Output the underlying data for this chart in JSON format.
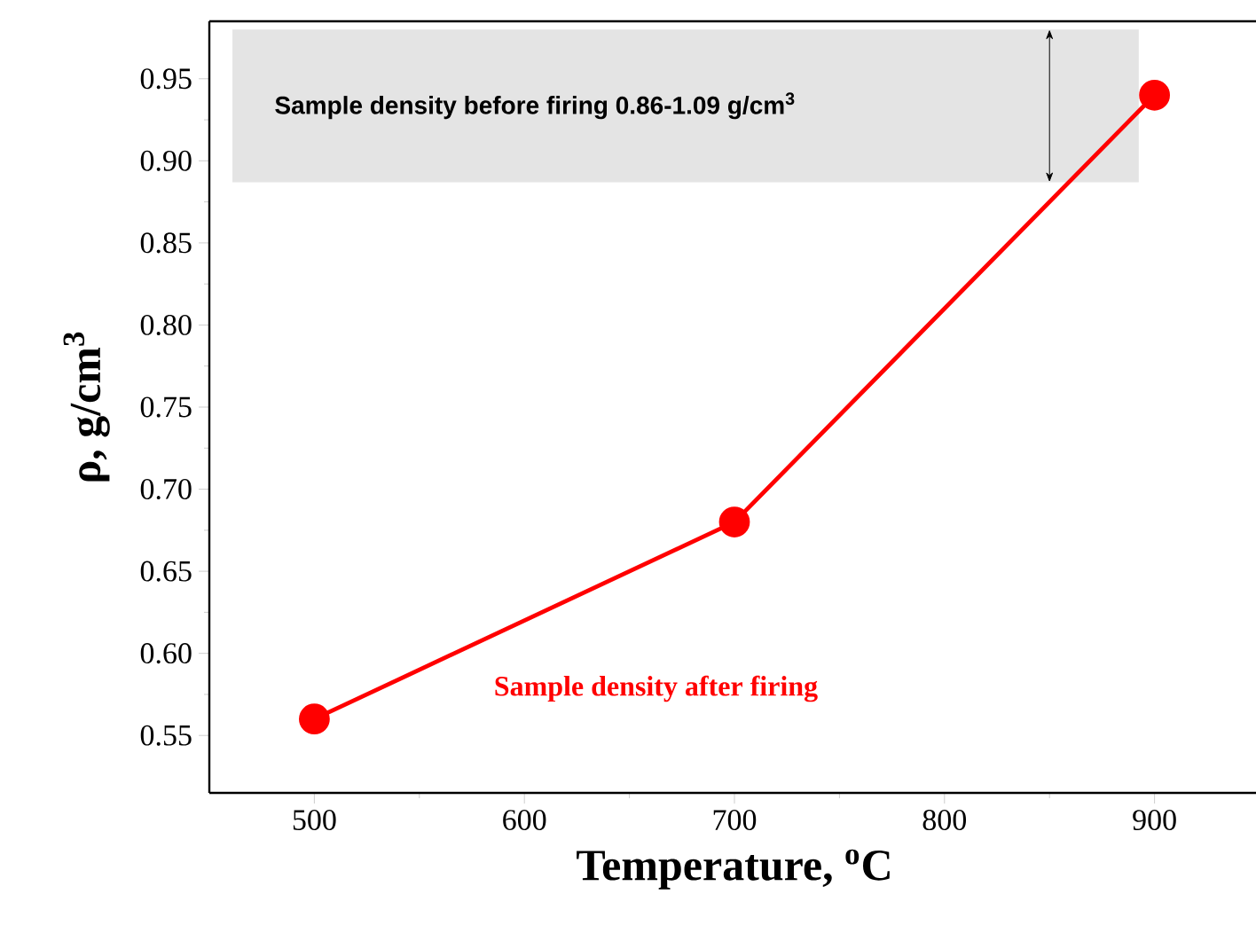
{
  "chart_data": {
    "type": "line",
    "x": [
      500,
      700,
      900
    ],
    "series": [
      {
        "name": "Sample density after firing",
        "color": "#ff0000",
        "values": [
          0.56,
          0.68,
          0.94
        ]
      }
    ],
    "xlabel": "Temperature, $^{o}$C",
    "ylabel": "ρ, g/cm$^{3}$",
    "xlim": [
      450,
      950
    ],
    "ylim": [
      0.515,
      0.985
    ],
    "xticks": [
      500,
      600,
      700,
      800,
      900
    ],
    "yticks": [
      0.55,
      {
        "value": 0.6,
        "label": "0.60"
      },
      0.65,
      {
        "value": 0.7,
        "label": "0.70"
      },
      0.75,
      {
        "value": 0.8,
        "label": "0.80"
      },
      0.85,
      {
        "value": 0.9,
        "label": "0.90"
      },
      0.95
    ],
    "bands": [
      {
        "axis": "y",
        "from": 0.887,
        "to": 0.98,
        "label": "Sample density before firing 0.86-1.09 g/cm$^{3}$",
        "color": "#e4e4e4"
      }
    ],
    "marker": "circle",
    "line_style": "solid",
    "grid": false
  }
}
